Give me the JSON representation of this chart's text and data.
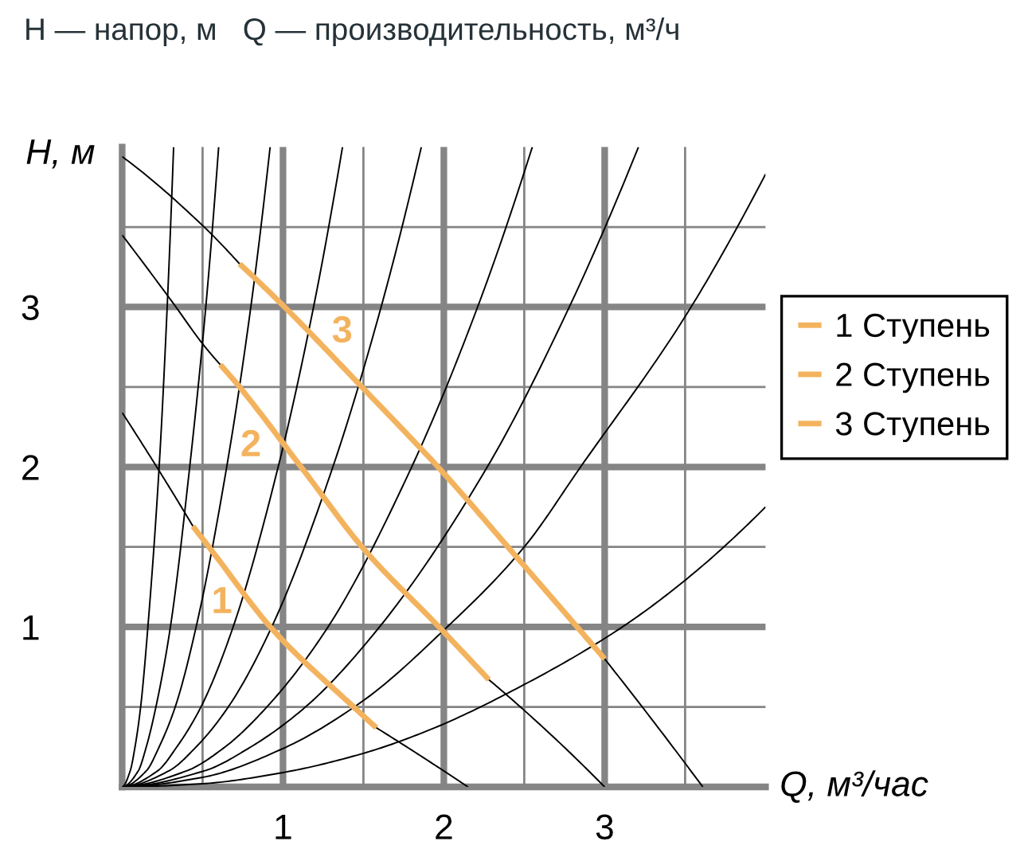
{
  "chart_data": {
    "type": "line",
    "title": "H — напор, м   Q — производительность, м³/ч",
    "xlabel": "Q, м³/час",
    "ylabel": "H, м",
    "xlim": [
      0,
      4
    ],
    "ylim": [
      0,
      4
    ],
    "xticks": [
      {
        "value": 0.5,
        "label": null
      },
      1,
      {
        "value": 1.5,
        "label": null
      },
      2,
      {
        "value": 2.5,
        "label": null
      },
      3,
      {
        "value": 3.5,
        "label": null
      }
    ],
    "yticks": [
      {
        "value": 0.5,
        "label": null
      },
      1,
      {
        "value": 1.5,
        "label": null
      },
      2,
      {
        "value": 2.5,
        "label": null
      },
      3,
      {
        "value": 3.5,
        "label": null
      }
    ],
    "grid": true,
    "legend": "right",
    "series": [
      {
        "color": "#000000",
        "x": [
          0,
          0.05,
          0.08,
          0.115,
          0.16,
          0.23,
          0.28,
          0.32
        ],
        "values": [
          0,
          0.1,
          0.25,
          0.5,
          1,
          2,
          3,
          4
        ]
      },
      {
        "color": "#000000",
        "x": [
          0,
          0.1,
          0.15,
          0.21,
          0.3,
          0.42,
          0.52,
          0.6
        ],
        "values": [
          0,
          0.1,
          0.25,
          0.5,
          1,
          2,
          3,
          4
        ]
      },
      {
        "color": "#000000",
        "x": [
          0,
          0.15,
          0.23,
          0.33,
          0.46,
          0.65,
          0.8,
          0.92
        ],
        "values": [
          0,
          0.1,
          0.25,
          0.5,
          1,
          2,
          3,
          4
        ]
      },
      {
        "color": "#000000",
        "x": [
          0,
          0.22,
          0.34,
          0.49,
          0.69,
          0.97,
          1.19,
          1.37
        ],
        "values": [
          0,
          0.1,
          0.25,
          0.5,
          1,
          2,
          3,
          4
        ]
      },
      {
        "color": "#000000",
        "x": [
          0,
          0.29,
          0.46,
          0.66,
          0.93,
          1.31,
          1.61,
          1.86
        ],
        "values": [
          0,
          0.1,
          0.25,
          0.5,
          1,
          2,
          3,
          4
        ]
      },
      {
        "color": "#000000",
        "x": [
          0,
          0.4,
          0.64,
          0.9,
          1.28,
          1.8,
          2.21,
          2.55
        ],
        "values": [
          0,
          0.1,
          0.25,
          0.5,
          1,
          2,
          3,
          4
        ]
      },
      {
        "color": "#000000",
        "x": [
          0,
          0.51,
          0.8,
          1.14,
          1.6,
          2.27,
          2.78,
          3.21
        ],
        "values": [
          0,
          0.1,
          0.25,
          0.5,
          1,
          2,
          3,
          4
        ]
      },
      {
        "color": "#000000",
        "x": [
          0,
          0.5,
          1,
          1.5,
          2,
          2.5,
          2.85,
          3.5,
          4
        ],
        "values": [
          0,
          0.06,
          0.24,
          0.54,
          0.98,
          1.5,
          2.0,
          2.94,
          3.83
        ]
      },
      {
        "color": "#000000",
        "x": [
          0,
          0.5,
          1,
          1.5,
          1.92,
          2.5,
          3.08,
          3.51,
          4
        ],
        "values": [
          0,
          0.02,
          0.09,
          0.21,
          0.36,
          0.64,
          0.98,
          1.3,
          1.75
        ]
      },
      {
        "color": "#000000",
        "x": [
          0,
          0.24,
          0.44
        ],
        "values": [
          2.34,
          1.96,
          1.63
        ]
      },
      {
        "color": "#000000",
        "x": [
          1.58,
          2.0,
          2.15
        ],
        "values": [
          0.37,
          0.1,
          0
        ]
      },
      {
        "color": "#000000",
        "x": [
          0,
          0.32,
          0.5,
          0.61
        ],
        "values": [
          3.45,
          3.02,
          2.77,
          2.64
        ]
      },
      {
        "color": "#000000",
        "x": [
          2.28,
          2.63,
          3.0
        ],
        "values": [
          0.67,
          0.36,
          0
        ]
      },
      {
        "color": "#000000",
        "x": [
          0,
          0.51,
          0.73
        ],
        "values": [
          3.94,
          3.5,
          3.27
        ]
      },
      {
        "color": "#000000",
        "x": [
          3.0,
          3.31,
          3.61
        ],
        "values": [
          0.8,
          0.4,
          0
        ]
      },
      {
        "name": "1 Ступень",
        "color": "#f3b35e",
        "x": [
          0.44,
          0.57,
          0.93,
          1.45,
          1.58
        ],
        "values": [
          1.63,
          1.46,
          0.99,
          0.49,
          0.37
        ]
      },
      {
        "name": "2 Ступень",
        "color": "#f3b35e",
        "x": [
          0.61,
          0.73,
          1.12,
          1.5,
          1.97,
          2.28
        ],
        "values": [
          2.64,
          2.5,
          1.99,
          1.49,
          1.0,
          0.67
        ]
      },
      {
        "name": "3 Ступень",
        "color": "#f3b35e",
        "x": [
          0.73,
          0.99,
          1.5,
          2.0,
          2.45,
          2.88,
          3.0
        ],
        "values": [
          3.27,
          3.02,
          2.49,
          1.96,
          1.44,
          0.94,
          0.8
        ]
      }
    ],
    "annotations": [
      "1",
      "2",
      "3"
    ]
  }
}
